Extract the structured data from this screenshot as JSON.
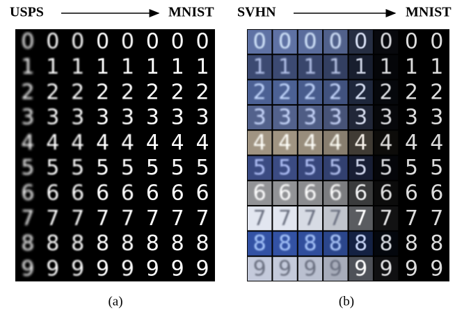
{
  "panels": [
    {
      "source": "USPS",
      "target": "MNIST",
      "label": "(a)",
      "digits": [
        "0",
        "1",
        "2",
        "3",
        "4",
        "5",
        "6",
        "7",
        "8",
        "9"
      ]
    },
    {
      "source": "SVHN",
      "target": "MNIST",
      "label": "(b)",
      "digits": [
        "0",
        "1",
        "2",
        "3",
        "4",
        "5",
        "6",
        "7",
        "8",
        "9"
      ]
    }
  ]
}
